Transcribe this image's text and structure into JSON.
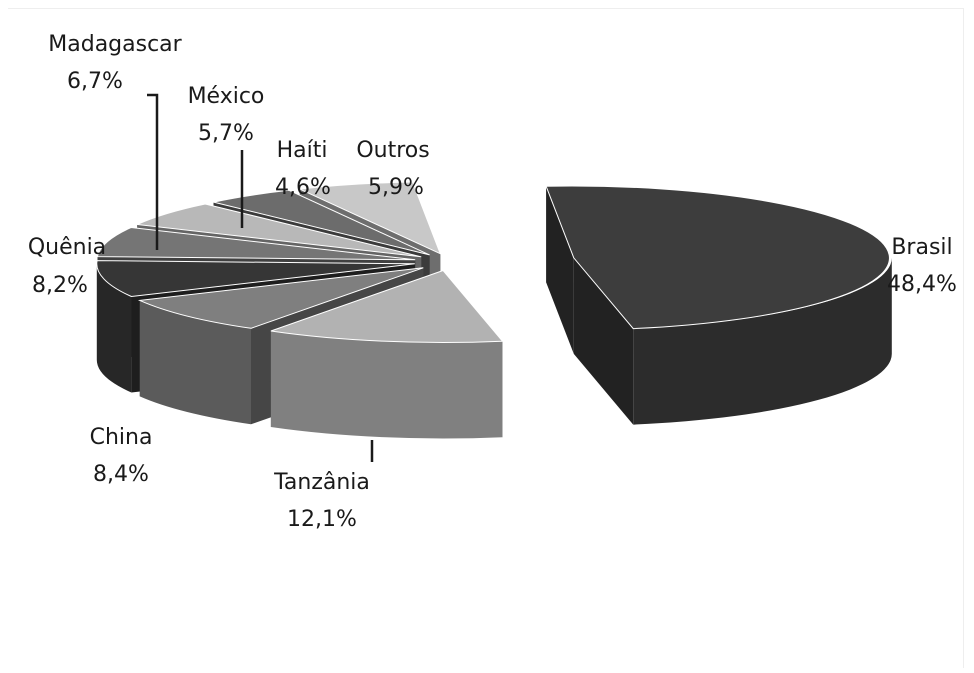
{
  "chart_data": {
    "type": "pie",
    "title": "",
    "style": "3d-exploded",
    "legend": "none",
    "slices": [
      {
        "name": "Brasil",
        "value": 48.4,
        "label": "48,4%",
        "color": "#3d3d3d"
      },
      {
        "name": "Tanzânia",
        "value": 12.1,
        "label": "12,1%",
        "color": "#b2b2b2"
      },
      {
        "name": "China",
        "value": 8.4,
        "label": "8,4%",
        "color": "#7f7f7f"
      },
      {
        "name": "Quênia",
        "value": 8.2,
        "label": "8,2%",
        "color": "#363636"
      },
      {
        "name": "Madagascar",
        "value": 6.7,
        "label": "6,7%",
        "color": "#757575"
      },
      {
        "name": "México",
        "value": 5.7,
        "label": "5,7%",
        "color": "#b8b8b8"
      },
      {
        "name": "Haíti",
        "value": 4.6,
        "label": "4,6%",
        "color": "#6c6c6c"
      },
      {
        "name": "Outros",
        "value": 5.9,
        "label": "5,9%",
        "color": "#c8c8c8"
      }
    ]
  }
}
